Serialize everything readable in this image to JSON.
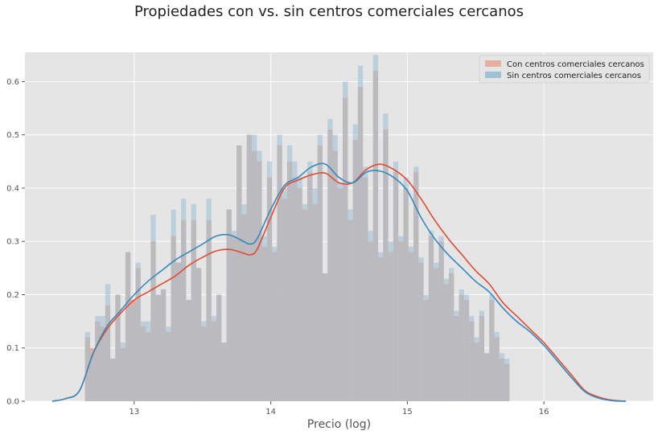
{
  "chart_data": {
    "type": "histogram",
    "title": "Propiedades con vs. sin centros comerciales cercanos",
    "xlabel": "Precio (log)",
    "ylabel": "",
    "xlim": [
      12.2,
      16.8
    ],
    "ylim": [
      0,
      0.655
    ],
    "xticks": [
      13,
      14,
      15,
      16
    ],
    "yticks": [
      0.0,
      0.1,
      0.2,
      0.3,
      0.4,
      0.5,
      0.6
    ],
    "grid": true,
    "legend_position": "top-right",
    "bins": {
      "start": 12.64,
      "width": 0.037,
      "count": 84
    },
    "series": [
      {
        "name": "Con centros comerciales cercanos",
        "color": "#e5ae9f",
        "values": [
          0.12,
          0.1,
          0.15,
          0.14,
          0.18,
          0.08,
          0.2,
          0.1,
          0.28,
          0.19,
          0.25,
          0.14,
          0.13,
          0.3,
          0.2,
          0.21,
          0.13,
          0.31,
          0.26,
          0.34,
          0.19,
          0.34,
          0.25,
          0.14,
          0.34,
          0.15,
          0.2,
          0.11,
          0.36,
          0.31,
          0.48,
          0.35,
          0.5,
          0.47,
          0.45,
          0.29,
          0.42,
          0.28,
          0.48,
          0.38,
          0.45,
          0.42,
          0.4,
          0.36,
          0.43,
          0.37,
          0.48,
          0.24,
          0.51,
          0.47,
          0.4,
          0.57,
          0.34,
          0.49,
          0.59,
          0.42,
          0.3,
          0.62,
          0.27,
          0.51,
          0.28,
          0.43,
          0.3,
          0.4,
          0.28,
          0.43,
          0.26,
          0.19,
          0.31,
          0.25,
          0.3,
          0.22,
          0.24,
          0.16,
          0.2,
          0.19,
          0.15,
          0.11,
          0.16,
          0.09,
          0.19,
          0.12,
          0.08,
          0.07
        ]
      },
      {
        "name": "Sin centros comerciales cercanos",
        "color": "#9fc1d5",
        "values": [
          0.13,
          0.09,
          0.16,
          0.16,
          0.22,
          0.08,
          0.2,
          0.11,
          0.28,
          0.18,
          0.26,
          0.15,
          0.15,
          0.35,
          0.2,
          0.21,
          0.14,
          0.36,
          0.26,
          0.38,
          0.19,
          0.37,
          0.25,
          0.15,
          0.38,
          0.16,
          0.2,
          0.11,
          0.36,
          0.32,
          0.48,
          0.37,
          0.5,
          0.5,
          0.47,
          0.31,
          0.45,
          0.29,
          0.5,
          0.4,
          0.48,
          0.45,
          0.42,
          0.37,
          0.45,
          0.4,
          0.5,
          0.24,
          0.53,
          0.5,
          0.41,
          0.6,
          0.36,
          0.52,
          0.63,
          0.44,
          0.32,
          0.65,
          0.28,
          0.54,
          0.3,
          0.45,
          0.31,
          0.42,
          0.29,
          0.44,
          0.27,
          0.2,
          0.32,
          0.26,
          0.31,
          0.23,
          0.25,
          0.17,
          0.21,
          0.2,
          0.16,
          0.12,
          0.17,
          0.09,
          0.2,
          0.13,
          0.09,
          0.08
        ]
      }
    ],
    "kde": [
      {
        "name": "Con centros comerciales cercanos",
        "color": "#e24a33",
        "x": [
          12.4,
          12.5,
          12.6,
          12.7,
          12.8,
          12.9,
          13.0,
          13.1,
          13.2,
          13.3,
          13.4,
          13.5,
          13.6,
          13.7,
          13.8,
          13.85,
          13.9,
          14.0,
          14.1,
          14.2,
          14.3,
          14.4,
          14.5,
          14.6,
          14.7,
          14.8,
          14.9,
          15.0,
          15.1,
          15.2,
          15.3,
          15.4,
          15.5,
          15.6,
          15.7,
          15.8,
          15.9,
          16.0,
          16.1,
          16.2,
          16.3,
          16.4,
          16.5,
          16.6
        ],
        "y": [
          0.0,
          0.005,
          0.02,
          0.09,
          0.135,
          0.165,
          0.19,
          0.205,
          0.22,
          0.235,
          0.255,
          0.27,
          0.282,
          0.285,
          0.278,
          0.275,
          0.285,
          0.345,
          0.4,
          0.415,
          0.425,
          0.428,
          0.41,
          0.41,
          0.435,
          0.445,
          0.435,
          0.415,
          0.38,
          0.34,
          0.305,
          0.275,
          0.245,
          0.22,
          0.185,
          0.16,
          0.135,
          0.11,
          0.08,
          0.05,
          0.02,
          0.008,
          0.002,
          0.0
        ]
      },
      {
        "name": "Sin centros comerciales cercanos",
        "color": "#348abd",
        "x": [
          12.4,
          12.5,
          12.6,
          12.7,
          12.8,
          12.9,
          13.0,
          13.1,
          13.2,
          13.3,
          13.4,
          13.5,
          13.6,
          13.7,
          13.8,
          13.85,
          13.9,
          14.0,
          14.1,
          14.2,
          14.3,
          14.4,
          14.5,
          14.6,
          14.7,
          14.8,
          14.9,
          15.0,
          15.1,
          15.2,
          15.3,
          15.4,
          15.5,
          15.6,
          15.7,
          15.8,
          15.9,
          16.0,
          16.1,
          16.2,
          16.3,
          16.4,
          16.5,
          16.6
        ],
        "y": [
          0.0,
          0.005,
          0.02,
          0.09,
          0.14,
          0.17,
          0.2,
          0.225,
          0.245,
          0.265,
          0.28,
          0.295,
          0.31,
          0.312,
          0.3,
          0.295,
          0.305,
          0.36,
          0.405,
          0.42,
          0.44,
          0.445,
          0.42,
          0.41,
          0.43,
          0.432,
          0.42,
          0.395,
          0.345,
          0.305,
          0.275,
          0.25,
          0.225,
          0.205,
          0.175,
          0.15,
          0.13,
          0.105,
          0.075,
          0.045,
          0.018,
          0.006,
          0.001,
          0.0
        ]
      }
    ]
  }
}
